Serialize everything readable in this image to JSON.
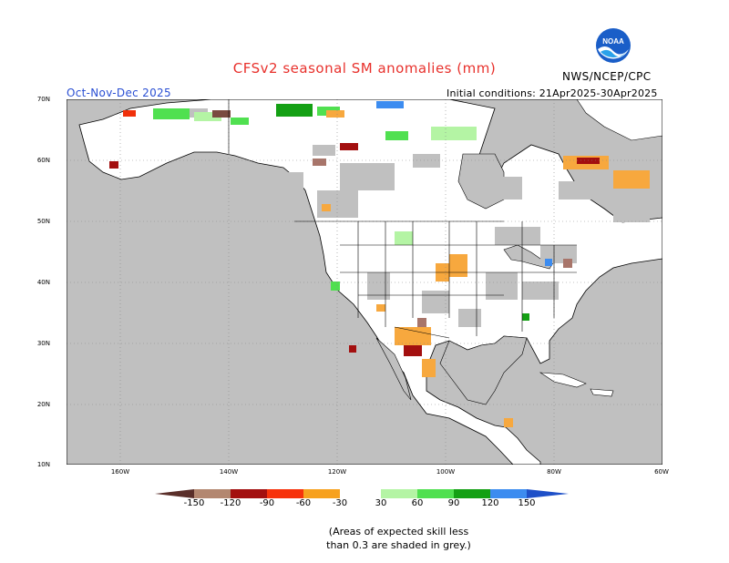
{
  "title": "CFSv2 seasonal SM anomalies (mm)",
  "season": "Oct-Nov-Dec 2025",
  "initial_conditions": "Initial conditions: 21Apr2025-30Apr2025",
  "agency": "NWS/NCEP/CPC",
  "logo_text": "NOAA",
  "lat_labels": [
    "70N",
    "60N",
    "50N",
    "40N",
    "30N",
    "20N",
    "10N"
  ],
  "lon_labels": [
    "160W",
    "140W",
    "120W",
    "100W",
    "80W",
    "60W"
  ],
  "colorbar": {
    "labels": [
      "-150",
      "-120",
      "-90",
      "-60",
      "-30",
      "30",
      "60",
      "90",
      "120",
      "150"
    ],
    "colors": [
      "#5a2f2a",
      "#b38770",
      "#a30f0f",
      "#f7320b",
      "#f7a11e",
      "#f7a83e",
      "#ffffff",
      "#b4f4a4",
      "#50e050",
      "#14a014",
      "#3c8cf0",
      "#1e50c8"
    ]
  },
  "note_line1": "(Areas of expected skill less",
  "note_line2": "than 0.3 are shaded in grey.)",
  "colors": {
    "dry_dark": "#7a4b40",
    "dry_brown": "#a8756a",
    "dry_red": "#a30f0f",
    "dry_orange_red": "#f0300a",
    "dry_orange": "#f7a83e",
    "wet_light": "#b4f4a4",
    "wet_green": "#50e050",
    "wet_dark": "#14a014",
    "wet_blue": "#3c8cf0",
    "low_skill_grey": "#c0c0c0"
  }
}
